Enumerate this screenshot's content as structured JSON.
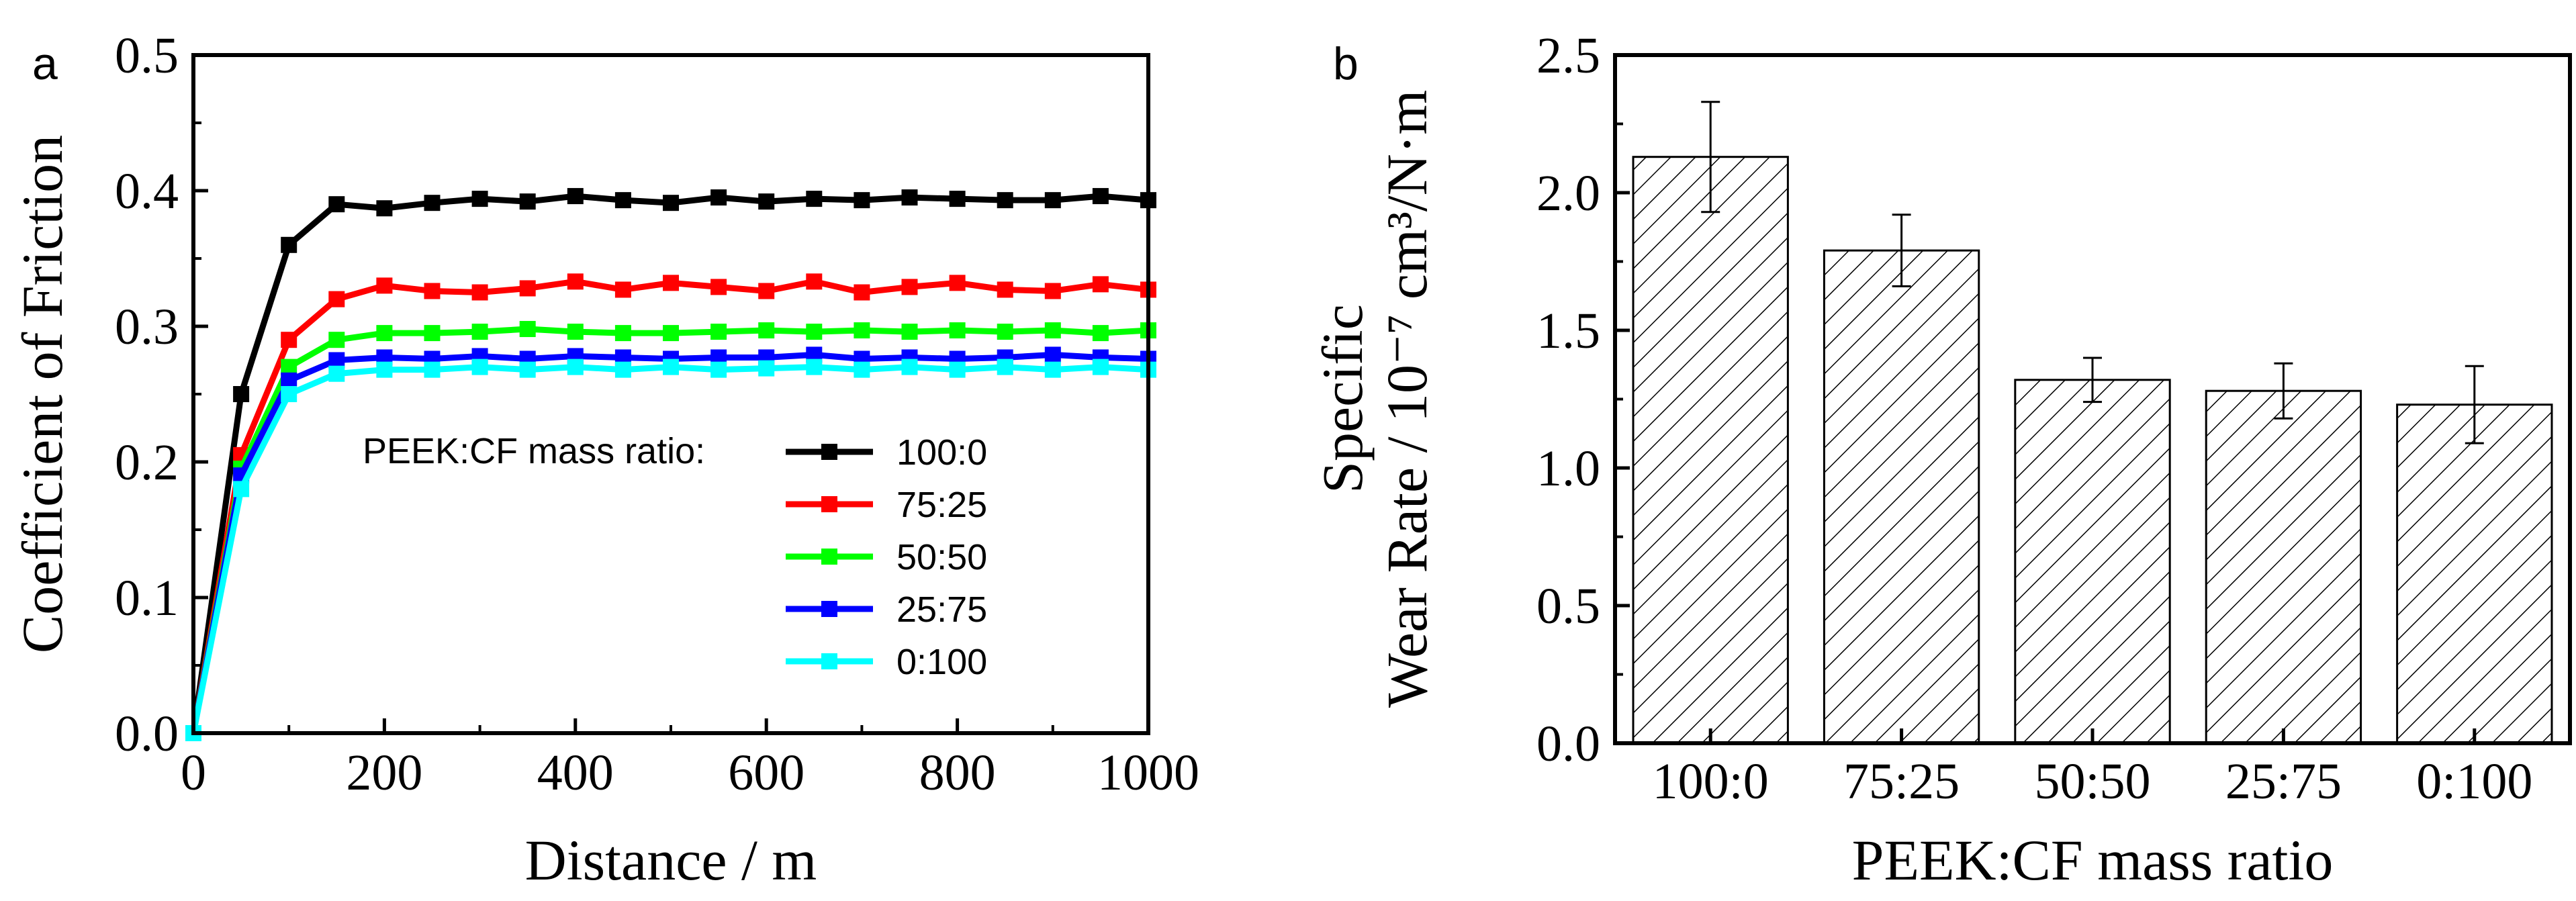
{
  "chart_data": [
    {
      "type": "line",
      "panel_label": "a",
      "title": "",
      "xlabel": "Distance / m",
      "ylabel": "Coefficient of Friction",
      "xlim": [
        0,
        1000
      ],
      "ylim": [
        0,
        0.5
      ],
      "x_ticks": [
        "0",
        "200",
        "400",
        "600",
        "800",
        "1000"
      ],
      "y_ticks": [
        "0.0",
        "0.1",
        "0.2",
        "0.3",
        "0.4",
        "0.5"
      ],
      "legend_title": "PEEK:CF mass ratio:",
      "legend_position": "center-right",
      "x": [
        0,
        50,
        100,
        150,
        200,
        250,
        300,
        350,
        400,
        450,
        500,
        550,
        600,
        650,
        700,
        750,
        800,
        850,
        900,
        950,
        1000
      ],
      "series": [
        {
          "name": "100:0",
          "color": "#000000",
          "values": [
            0.0,
            0.25,
            0.36,
            0.39,
            0.387,
            0.391,
            0.394,
            0.392,
            0.396,
            0.393,
            0.391,
            0.395,
            0.392,
            0.394,
            0.393,
            0.395,
            0.394,
            0.393,
            0.393,
            0.396,
            0.393
          ]
        },
        {
          "name": "75:25",
          "color": "#ff0000",
          "values": [
            0.0,
            0.205,
            0.29,
            0.32,
            0.33,
            0.326,
            0.325,
            0.328,
            0.333,
            0.327,
            0.332,
            0.329,
            0.326,
            0.333,
            0.325,
            0.329,
            0.332,
            0.327,
            0.326,
            0.331,
            0.327
          ]
        },
        {
          "name": "50:50",
          "color": "#00ff00",
          "values": [
            0.0,
            0.195,
            0.27,
            0.29,
            0.295,
            0.295,
            0.296,
            0.298,
            0.296,
            0.295,
            0.295,
            0.296,
            0.297,
            0.296,
            0.297,
            0.296,
            0.297,
            0.296,
            0.297,
            0.295,
            0.297
          ]
        },
        {
          "name": "25:75",
          "color": "#0000ff",
          "values": [
            0.0,
            0.19,
            0.26,
            0.275,
            0.277,
            0.276,
            0.278,
            0.276,
            0.278,
            0.277,
            0.276,
            0.277,
            0.277,
            0.279,
            0.276,
            0.277,
            0.276,
            0.277,
            0.279,
            0.277,
            0.276
          ]
        },
        {
          "name": "0:100",
          "color": "#00ffff",
          "values": [
            0.0,
            0.18,
            0.25,
            0.265,
            0.268,
            0.268,
            0.27,
            0.268,
            0.27,
            0.268,
            0.27,
            0.268,
            0.269,
            0.27,
            0.268,
            0.27,
            0.268,
            0.27,
            0.268,
            0.27,
            0.268
          ]
        }
      ]
    },
    {
      "type": "bar",
      "panel_label": "b",
      "title": "",
      "xlabel": "PEEK:CF mass ratio",
      "ylabel_line1": "Specific",
      "ylabel_line2": "Wear Rate / 10⁻⁷ cm³/N·m",
      "ylim": [
        0,
        2.5
      ],
      "y_ticks": [
        "0.0",
        "0.5",
        "1.0",
        "1.5",
        "2.0",
        "2.5"
      ],
      "categories": [
        "100:0",
        "75:25",
        "50:50",
        "25:75",
        "0:100"
      ],
      "values": [
        2.13,
        1.79,
        1.32,
        1.28,
        1.23
      ],
      "errors": [
        0.2,
        0.13,
        0.08,
        0.1,
        0.14
      ],
      "bar_fill": "hatched"
    }
  ]
}
